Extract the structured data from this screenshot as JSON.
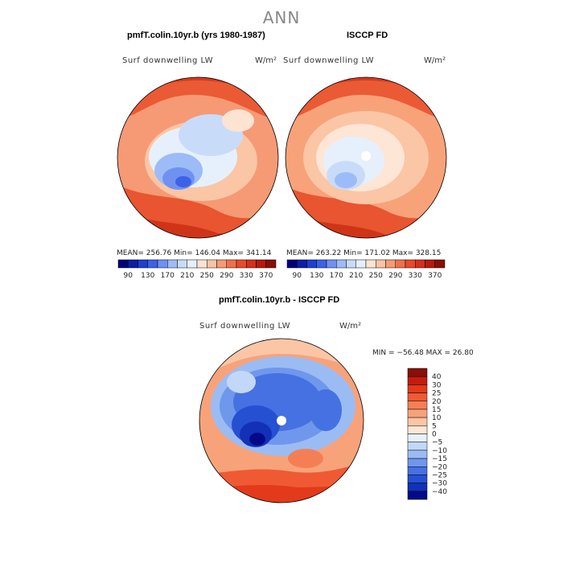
{
  "title": "ANN",
  "panels": {
    "left": {
      "title": "pmfT.colin.10yr.b (yrs 1980-1987)",
      "variable": "Surf downwelling LW",
      "units": "W/m²",
      "stats": "MEAN= 256.76   Min= 146.04   Max= 341.14"
    },
    "right": {
      "title": "ISCCP FD",
      "variable": "Surf downwelling LW",
      "units": "W/m²",
      "stats": "MEAN= 263.22   Min= 171.02   Max= 328.15"
    },
    "diff": {
      "title": "pmfT.colin.10yr.b - ISCCP FD",
      "variable": "Surf downwelling LW",
      "units": "W/m²",
      "stats": "MIN = −56.48 MAX =  26.80"
    }
  },
  "chart_data": [
    {
      "type": "heatmap",
      "title": "pmfT.colin.10yr.b (yrs 1980-1987)",
      "projection": "polar stereographic, north pole",
      "variable": "Surf downwelling LW",
      "units": "W/m2",
      "mean": 256.76,
      "min": 146.04,
      "max": 341.14,
      "colorbar_ticks": [
        "90",
        "130",
        "170",
        "210",
        "250",
        "290",
        "330",
        "370"
      ],
      "colors": [
        "#00007a",
        "#0a1fa8",
        "#1f3fd2",
        "#3c62e8",
        "#6f91f2",
        "#9dbcf7",
        "#c8dcfa",
        "#e6f0fd",
        "#fde3d2",
        "#fbc3a4",
        "#f79a74",
        "#f1704a",
        "#e84a2a",
        "#d72f18",
        "#b81a0c",
        "#8a0f06"
      ]
    },
    {
      "type": "heatmap",
      "title": "ISCCP FD",
      "projection": "polar stereographic, north pole",
      "variable": "Surf downwelling LW",
      "units": "W/m2",
      "mean": 263.22,
      "min": 171.02,
      "max": 328.15,
      "colorbar_ticks": [
        "90",
        "130",
        "170",
        "210",
        "250",
        "290",
        "330",
        "370"
      ],
      "colors": [
        "#00007a",
        "#0a1fa8",
        "#1f3fd2",
        "#3c62e8",
        "#6f91f2",
        "#9dbcf7",
        "#c8dcfa",
        "#e6f0fd",
        "#fde3d2",
        "#fbc3a4",
        "#f79a74",
        "#f1704a",
        "#e84a2a",
        "#d72f18",
        "#b81a0c",
        "#8a0f06"
      ]
    },
    {
      "type": "heatmap",
      "title": "pmfT.colin.10yr.b - ISCCP FD",
      "projection": "polar stereographic, north pole",
      "variable": "Surf downwelling LW",
      "units": "W/m2",
      "min": -56.48,
      "max": 26.8,
      "colorbar_ticks": [
        "40",
        "30",
        "25",
        "20",
        "15",
        "10",
        "5",
        "0",
        "−5",
        "−10",
        "−15",
        "−20",
        "−25",
        "−30",
        "−40"
      ],
      "colors": [
        "#8a0f06",
        "#c41d0c",
        "#e23a1a",
        "#ef5a34",
        "#f47f55",
        "#f8a27a",
        "#fbc6a6",
        "#fde6d6",
        "#e7f0fd",
        "#c3d7f8",
        "#9bbcf3",
        "#6f97ec",
        "#4671e2",
        "#2650d2",
        "#1231b6",
        "#030a8a"
      ]
    }
  ]
}
